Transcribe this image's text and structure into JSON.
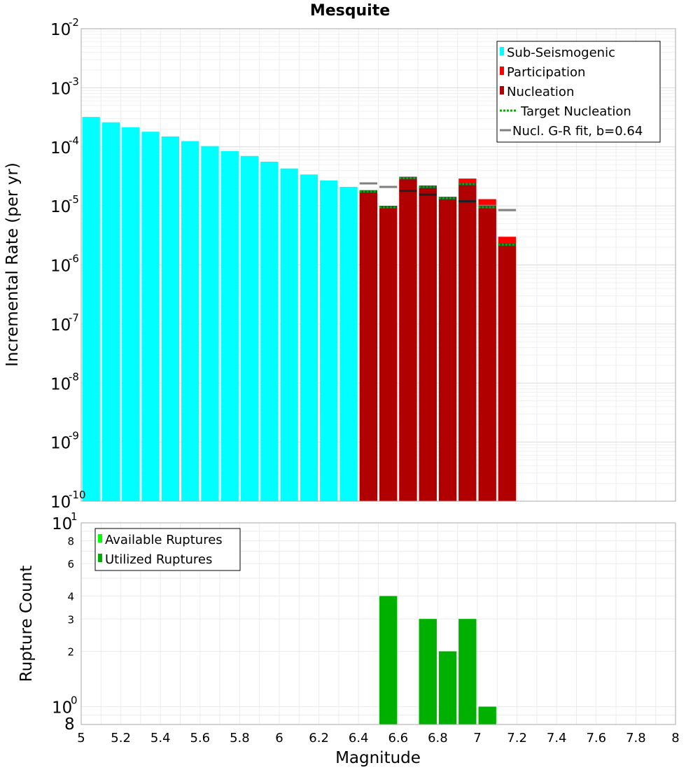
{
  "chart_data": [
    {
      "type": "bar",
      "title": "Mesquite",
      "xlabel": "",
      "ylabel": "Incremental Rate (per yr)",
      "xlim": [
        5,
        8
      ],
      "ylim": [
        1e-10,
        0.01
      ],
      "yscale": "log",
      "grid": true,
      "legend_placement": "top-right",
      "ytick_base": "10",
      "ytick_exponents": [
        "-10",
        "-9",
        "-8",
        "-7",
        "-6",
        "-5",
        "-4",
        "-3",
        "-2"
      ],
      "legend": [
        {
          "label": "Sub-Seismogenic",
          "color": "#00ffff",
          "kind": "swatch"
        },
        {
          "label": "Participation",
          "color": "#ff0000",
          "kind": "swatch"
        },
        {
          "label": "Nucleation",
          "color": "#b00000",
          "kind": "swatch"
        },
        {
          "label": "Target Nucleation",
          "color": "#00b000",
          "kind": "dotted"
        },
        {
          "label": "Nucl. G-R fit, b=0.64",
          "color": "#808080",
          "kind": "line"
        }
      ],
      "series": [
        {
          "name": "Sub-Seismogenic",
          "color": "#00ffff",
          "x": [
            5.05,
            5.15,
            5.25,
            5.35,
            5.45,
            5.55,
            5.65,
            5.75,
            5.85,
            5.95,
            6.05,
            6.15,
            6.25,
            6.35
          ],
          "values": [
            0.00032,
            0.00026,
            0.000215,
            0.00018,
            0.00015,
            0.000125,
            0.000103,
            8.5e-05,
            7e-05,
            5.6e-05,
            4.3e-05,
            3.4e-05,
            2.7e-05,
            2.1e-05
          ]
        },
        {
          "name": "Participation",
          "color": "#ff0000",
          "x": [
            6.45,
            6.55,
            6.65,
            6.75,
            6.85,
            6.95,
            7.05,
            7.15
          ],
          "values": [
            1.8e-05,
            9.5e-06,
            2.8e-05,
            2.1e-05,
            1.3e-05,
            2.9e-05,
            1.3e-05,
            3e-06
          ]
        },
        {
          "name": "Nucleation",
          "color": "#b00000",
          "x": [
            6.45,
            6.55,
            6.65,
            6.75,
            6.85,
            6.95,
            7.05,
            7.15
          ],
          "values": [
            1.8e-05,
            9.5e-06,
            2.8e-05,
            2e-05,
            1.3e-05,
            2.4e-05,
            1e-05,
            2.3e-06
          ]
        },
        {
          "name": "Target Nucleation",
          "color": "#00b000",
          "x": [
            6.45,
            6.55,
            6.65,
            6.75,
            6.85,
            6.95,
            7.05,
            7.15
          ],
          "values": [
            1.75e-05,
            9.5e-06,
            2.95e-05,
            2.1e-05,
            1.35e-05,
            2.35e-05,
            9.5e-06,
            2.2e-06
          ]
        },
        {
          "name": "Nucl. G-R fit, b=0.64",
          "color": "#808080",
          "x": [
            6.45,
            6.55,
            6.65,
            6.75,
            6.85,
            6.95,
            7.05,
            7.15
          ],
          "values": [
            2.4e-05,
            2.1e-05,
            1.8e-05,
            1.55e-05,
            1.35e-05,
            1.2e-05,
            1e-05,
            8.5e-06
          ]
        }
      ]
    },
    {
      "type": "bar",
      "title": "",
      "xlabel": "Magnitude",
      "ylabel": "Rupture Count",
      "xlim": [
        5,
        8
      ],
      "ylim": [
        0.8,
        10
      ],
      "yscale": "log",
      "grid": true,
      "legend_placement": "top-left",
      "xticks": [
        "5",
        "5.2",
        "5.4",
        "5.6",
        "5.8",
        "6",
        "6.2",
        "6.4",
        "6.6",
        "6.8",
        "7",
        "7.2",
        "7.4",
        "7.6",
        "7.8",
        "8"
      ],
      "ytick_labels": {
        "bottom_minor": "8",
        "one_base": "10",
        "one_exp": "0",
        "two": "2",
        "three": "3",
        "four": "4",
        "six": "6",
        "eight": "8",
        "ten_base": "10",
        "ten_exp": "1"
      },
      "legend": [
        {
          "label": "Available Ruptures",
          "color": "#00ff00",
          "kind": "swatch"
        },
        {
          "label": "Utilized Ruptures",
          "color": "#00b000",
          "kind": "swatch"
        }
      ],
      "series": [
        {
          "name": "Available Ruptures",
          "color": "#00ff00",
          "x": [
            6.55,
            6.75,
            6.85,
            6.95,
            7.05
          ],
          "values": [
            4,
            3,
            2,
            3,
            1
          ]
        },
        {
          "name": "Utilized Ruptures",
          "color": "#00b000",
          "x": [
            6.55,
            6.75,
            6.85,
            6.95,
            7.05
          ],
          "values": [
            4,
            3,
            2,
            3,
            1
          ]
        }
      ]
    }
  ]
}
